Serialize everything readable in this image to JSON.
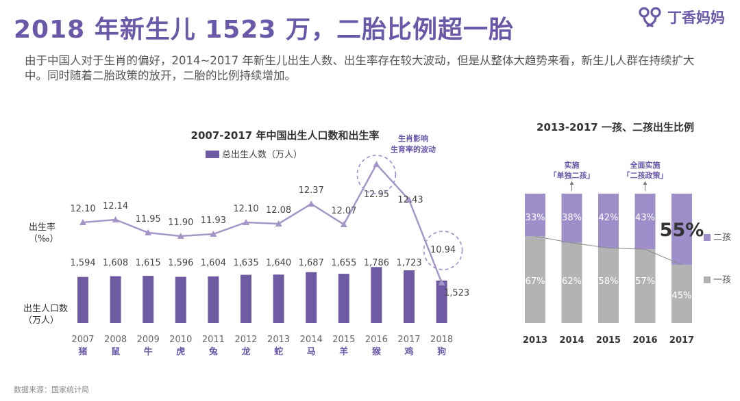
{
  "header": {
    "title": "2018 年新生儿 1523 万，二胎比例超一胎",
    "brand": "丁香妈妈",
    "description": "由于中国人对于生肖的偏好，2014~2017 年新生儿出生人数、出生率存在较大波动，但是从整体大趋势来看，新生儿人群在持续扩大中。同时随着二胎政策的放开，二胎的比例持续增加。"
  },
  "footer": {
    "source": "数据来源：国家统计局"
  },
  "colors": {
    "accent": "#6a58a8",
    "bar": "#6f5aa4",
    "line": "#a596c8",
    "light": "#9e8fca",
    "gray": "#b3b3b3"
  },
  "chart_data": [
    {
      "type": "bar",
      "title": "2007-2017 年中国出生人口数和出生率",
      "legend": "总出生人数（万人）",
      "ylabel": "出生人口数\n（万人）",
      "categories": [
        "2007",
        "2008",
        "2009",
        "2010",
        "2011",
        "2012",
        "2013",
        "2014",
        "2015",
        "2016",
        "2017",
        "2018"
      ],
      "zodiac": [
        "猪",
        "鼠",
        "牛",
        "虎",
        "兔",
        "龙",
        "蛇",
        "马",
        "羊",
        "猴",
        "鸡",
        "狗"
      ],
      "values": [
        1594,
        1608,
        1615,
        1596,
        1604,
        1635,
        1640,
        1687,
        1655,
        1786,
        1723,
        1523
      ],
      "value_labels": [
        "1,594",
        "1,608",
        "1,615",
        "1,596",
        "1,604",
        "1,635",
        "1,640",
        "1,687",
        "1,655",
        "1,786",
        "1,723",
        "1,523"
      ],
      "line_series": {
        "name": "出生率\n（‰）",
        "values": [
          12.1,
          12.14,
          11.95,
          11.9,
          11.93,
          12.1,
          12.08,
          12.37,
          12.07,
          12.95,
          12.43,
          10.94
        ],
        "labels": [
          "12.10",
          "12.14",
          "11.95",
          "11.90",
          "11.93",
          "12.10",
          "12.08",
          "12.37",
          "12.07",
          "12.95",
          "12.43",
          "10.94"
        ]
      },
      "annotation": "生肖影响\n生育率的波动"
    },
    {
      "type": "bar",
      "stacked": true,
      "title": "2013-2017 一孩、二孩出生比例",
      "categories": [
        "2013",
        "2014",
        "2015",
        "2016",
        "2017"
      ],
      "series": [
        {
          "name": "一孩",
          "values": [
            67,
            62,
            58,
            57,
            45
          ],
          "labels": [
            "67%",
            "62%",
            "58%",
            "57%",
            "45%"
          ]
        },
        {
          "name": "二孩",
          "values": [
            33,
            38,
            42,
            43,
            55
          ],
          "labels": [
            "33%",
            "38%",
            "42%",
            "43%",
            "55%"
          ]
        }
      ],
      "annotations": [
        {
          "category": "2014",
          "text": "实施\n「单独二孩」"
        },
        {
          "category": "2016",
          "text": "全面实施\n「二孩政策」"
        }
      ]
    }
  ]
}
